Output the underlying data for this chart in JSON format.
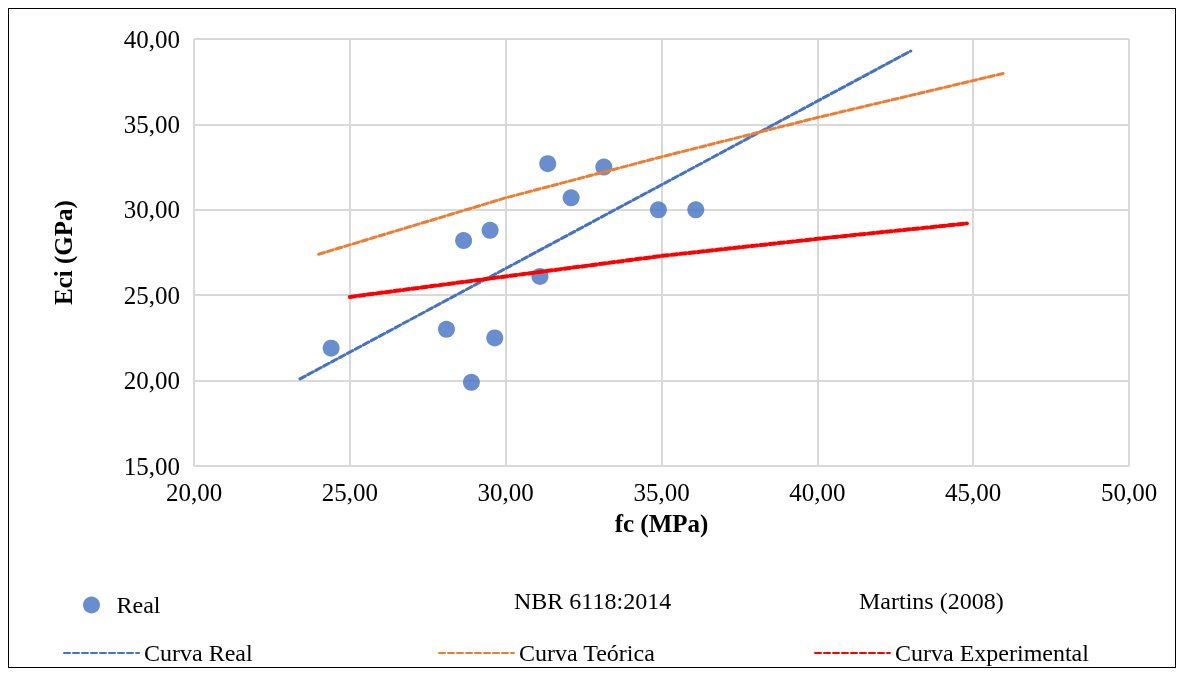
{
  "chart_data": {
    "type": "scatter",
    "xlabel": "fc (MPa)",
    "ylabel": "Eci (GPa)",
    "xlim": [
      20,
      50
    ],
    "xticks": [
      {
        "value": 20,
        "label": "20,00"
      },
      {
        "value": 25,
        "label": "25,00"
      },
      {
        "value": 30,
        "label": "30,00"
      },
      {
        "value": 35,
        "label": "35,00"
      },
      {
        "value": 40,
        "label": "40,00"
      },
      {
        "value": 45,
        "label": "45,00"
      },
      {
        "value": 50,
        "label": "50,00"
      }
    ],
    "ylim": [
      15,
      40
    ],
    "yticks": [
      {
        "value": 15,
        "label": "15,00"
      },
      {
        "value": 20,
        "label": "20,00"
      },
      {
        "value": 25,
        "label": "25,00"
      },
      {
        "value": 30,
        "label": "30,00"
      },
      {
        "value": 35,
        "label": "35,00"
      },
      {
        "value": 40,
        "label": "40,00"
      }
    ],
    "grid": true,
    "legend": "bottom",
    "marker": "circle",
    "annotations": [
      "NBR 6118:2014",
      "Martins (2008)"
    ],
    "series": [
      {
        "name": "Real",
        "color": "#4472c4",
        "x": [
          24.4,
          28.1,
          28.65,
          28.9,
          29.5,
          29.65,
          31.1,
          31.35,
          32.1,
          33.15,
          34.9,
          36.1
        ],
        "values": [
          21.9,
          23.0,
          28.2,
          19.9,
          28.8,
          22.5,
          26.1,
          32.7,
          30.7,
          32.5,
          30.0,
          30.0
        ]
      },
      {
        "name": "Curva Real",
        "type": "line",
        "line_style": "dashed",
        "marker": "none",
        "color": "#4472c4",
        "x": [
          23.4,
          43.0
        ],
        "values": [
          20.1,
          39.3
        ]
      },
      {
        "name": "Curva Teórica",
        "type": "line",
        "line_style": "dashed",
        "marker": "none",
        "color": "#ed7d31",
        "x": [
          24,
          30,
          35,
          40,
          46
        ],
        "values": [
          27.4,
          30.7,
          33.1,
          35.4,
          38.0
        ]
      },
      {
        "name": "Curva Experimental",
        "type": "line",
        "line_style": "dashed",
        "marker": "none",
        "color": "#ff0000",
        "x": [
          25,
          30,
          35,
          40,
          44.8
        ],
        "values": [
          24.9,
          26.1,
          27.3,
          28.3,
          29.2
        ]
      }
    ]
  }
}
